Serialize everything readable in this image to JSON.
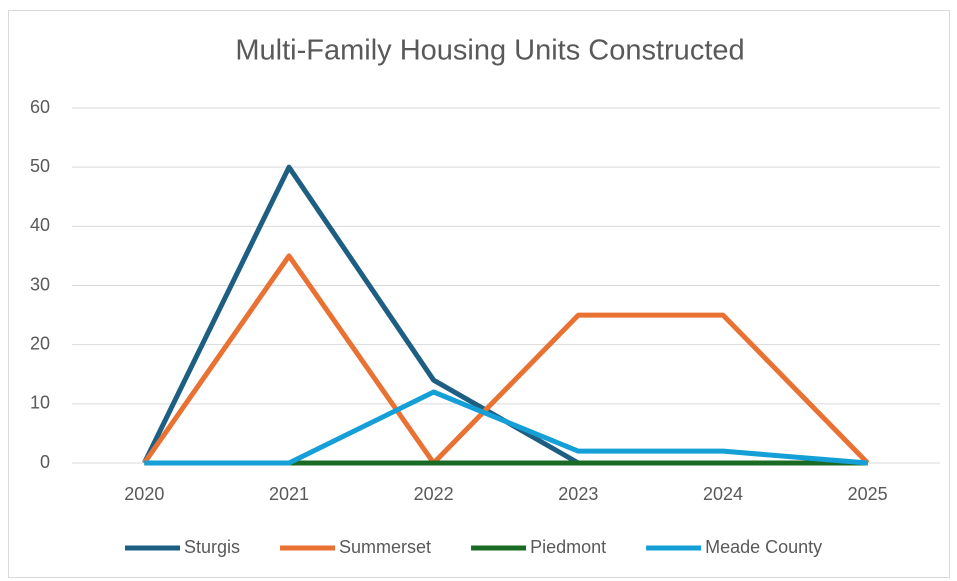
{
  "chart_data": {
    "type": "line",
    "title": "Multi-Family Housing Units Constructed",
    "categories": [
      "2020",
      "2021",
      "2022",
      "2023",
      "2024",
      "2025"
    ],
    "series": [
      {
        "name": "Sturgis",
        "color": "#1d5f82",
        "values": [
          0,
          50,
          14,
          0,
          0,
          0
        ]
      },
      {
        "name": "Summerset",
        "color": "#e97132",
        "values": [
          0,
          35,
          0,
          25,
          25,
          0
        ]
      },
      {
        "name": "Piedmont",
        "color": "#196b24",
        "values": [
          0,
          0,
          0,
          0,
          0,
          0
        ]
      },
      {
        "name": "Meade County",
        "color": "#14a0d6",
        "values": [
          0,
          0,
          12,
          2,
          2,
          0
        ]
      }
    ],
    "ylim": [
      0,
      60
    ],
    "yticks": [
      0,
      10,
      20,
      30,
      40,
      50,
      60
    ],
    "grid": true,
    "legend": "bottom"
  }
}
